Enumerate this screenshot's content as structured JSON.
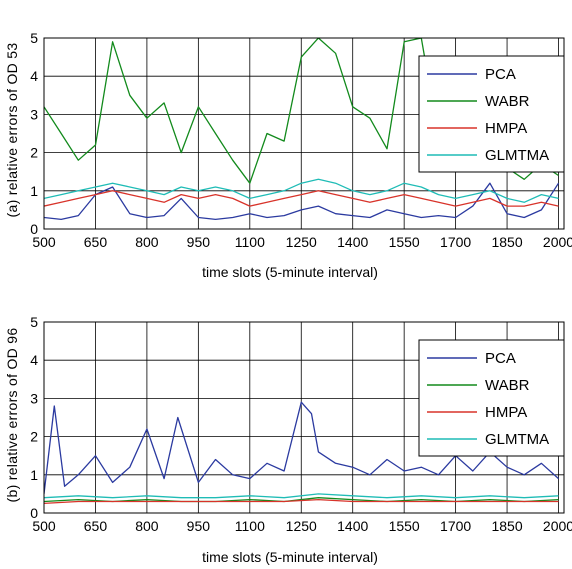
{
  "chart_data": [
    {
      "type": "line",
      "ylabel": "(a) relative errors of OD 53",
      "xlabel": "time slots (5-minute interval)",
      "xlim": [
        500,
        2016
      ],
      "ylim": [
        0,
        5
      ],
      "xticks": [
        "500",
        "650",
        "800",
        "950",
        "1100",
        "1250",
        "1400",
        "1550",
        "1700",
        "1850",
        "2000"
      ],
      "yticks": [
        "0",
        "1",
        "2",
        "3",
        "4",
        "5"
      ],
      "grid": true,
      "legend_position": "top-right",
      "series": [
        {
          "name": "PCA",
          "color": "#2b3aa0",
          "x": [
            500,
            550,
            600,
            650,
            700,
            750,
            800,
            850,
            900,
            950,
            1000,
            1050,
            1100,
            1150,
            1200,
            1250,
            1300,
            1350,
            1400,
            1450,
            1500,
            1550,
            1600,
            1650,
            1700,
            1750,
            1800,
            1850,
            1900,
            1950,
            2000
          ],
          "y": [
            0.3,
            0.25,
            0.35,
            0.9,
            1.1,
            0.4,
            0.3,
            0.35,
            0.8,
            0.3,
            0.25,
            0.3,
            0.4,
            0.3,
            0.35,
            0.5,
            0.6,
            0.4,
            0.35,
            0.3,
            0.5,
            0.4,
            0.3,
            0.35,
            0.3,
            0.6,
            1.2,
            0.4,
            0.3,
            0.5,
            1.2
          ]
        },
        {
          "name": "WABR",
          "color": "#128a1c",
          "x": [
            500,
            550,
            600,
            650,
            700,
            750,
            800,
            850,
            900,
            950,
            1000,
            1050,
            1100,
            1150,
            1200,
            1250,
            1300,
            1350,
            1400,
            1450,
            1500,
            1550,
            1600,
            1650,
            1700,
            1750,
            1800,
            1850,
            1900,
            1950,
            2000
          ],
          "y": [
            3.2,
            2.5,
            1.8,
            2.2,
            4.9,
            3.5,
            2.9,
            3.3,
            2.0,
            3.2,
            2.5,
            1.8,
            1.2,
            2.5,
            2.3,
            4.5,
            5.0,
            4.6,
            3.2,
            2.9,
            2.1,
            4.9,
            5.0,
            2.4,
            1.5,
            1.8,
            2.2,
            1.6,
            1.3,
            1.7,
            1.4
          ]
        },
        {
          "name": "HMPA",
          "color": "#d8332a",
          "x": [
            500,
            550,
            600,
            650,
            700,
            750,
            800,
            850,
            900,
            950,
            1000,
            1050,
            1100,
            1150,
            1200,
            1250,
            1300,
            1350,
            1400,
            1450,
            1500,
            1550,
            1600,
            1650,
            1700,
            1750,
            1800,
            1850,
            1900,
            1950,
            2000
          ],
          "y": [
            0.6,
            0.7,
            0.8,
            0.9,
            1.0,
            0.9,
            0.8,
            0.7,
            0.9,
            0.8,
            0.9,
            0.8,
            0.6,
            0.7,
            0.8,
            0.9,
            1.0,
            0.9,
            0.8,
            0.7,
            0.8,
            0.9,
            0.8,
            0.7,
            0.6,
            0.7,
            0.8,
            0.6,
            0.6,
            0.7,
            0.6
          ]
        },
        {
          "name": "GLMTMA",
          "color": "#1fbcb6",
          "x": [
            500,
            550,
            600,
            650,
            700,
            750,
            800,
            850,
            900,
            950,
            1000,
            1050,
            1100,
            1150,
            1200,
            1250,
            1300,
            1350,
            1400,
            1450,
            1500,
            1550,
            1600,
            1650,
            1700,
            1750,
            1800,
            1850,
            1900,
            1950,
            2000
          ],
          "y": [
            0.8,
            0.9,
            1.0,
            1.1,
            1.2,
            1.1,
            1.0,
            0.9,
            1.1,
            1.0,
            1.1,
            1.0,
            0.8,
            0.9,
            1.0,
            1.2,
            1.3,
            1.2,
            1.0,
            0.9,
            1.0,
            1.2,
            1.1,
            0.9,
            0.8,
            0.9,
            1.0,
            0.8,
            0.7,
            0.9,
            0.8
          ]
        }
      ]
    },
    {
      "type": "line",
      "ylabel": "(b) relative errors of OD 96",
      "xlabel": "time slots (5-minute interval)",
      "xlim": [
        500,
        2016
      ],
      "ylim": [
        0,
        5
      ],
      "xticks": [
        "500",
        "650",
        "800",
        "950",
        "1100",
        "1250",
        "1400",
        "1550",
        "1700",
        "1850",
        "2000"
      ],
      "yticks": [
        "0",
        "1",
        "2",
        "3",
        "4",
        "5"
      ],
      "grid": true,
      "legend_position": "top-right",
      "series": [
        {
          "name": "PCA",
          "color": "#2b3aa0",
          "x": [
            500,
            530,
            560,
            600,
            650,
            700,
            750,
            800,
            850,
            890,
            950,
            1000,
            1050,
            1100,
            1150,
            1200,
            1250,
            1280,
            1300,
            1350,
            1400,
            1450,
            1500,
            1550,
            1600,
            1650,
            1700,
            1750,
            1800,
            1850,
            1900,
            1950,
            2000
          ],
          "y": [
            0.5,
            2.8,
            0.7,
            1.0,
            1.5,
            0.8,
            1.2,
            2.2,
            0.9,
            2.5,
            0.8,
            1.4,
            1.0,
            0.9,
            1.3,
            1.1,
            2.9,
            2.6,
            1.6,
            1.3,
            1.2,
            1.0,
            1.4,
            1.1,
            1.2,
            1.0,
            1.5,
            1.1,
            1.6,
            1.2,
            1.0,
            1.3,
            0.9
          ]
        },
        {
          "name": "WABR",
          "color": "#128a1c",
          "x": [
            500,
            600,
            700,
            800,
            900,
            1000,
            1100,
            1200,
            1300,
            1400,
            1500,
            1600,
            1700,
            1800,
            1900,
            2000
          ],
          "y": [
            0.3,
            0.35,
            0.3,
            0.35,
            0.3,
            0.3,
            0.35,
            0.3,
            0.4,
            0.35,
            0.3,
            0.35,
            0.3,
            0.35,
            0.3,
            0.35
          ]
        },
        {
          "name": "HMPA",
          "color": "#d8332a",
          "x": [
            500,
            600,
            700,
            800,
            900,
            1000,
            1100,
            1200,
            1300,
            1400,
            1500,
            1600,
            1700,
            1800,
            1900,
            2000
          ],
          "y": [
            0.25,
            0.3,
            0.3,
            0.3,
            0.3,
            0.3,
            0.3,
            0.3,
            0.35,
            0.3,
            0.3,
            0.3,
            0.3,
            0.3,
            0.3,
            0.3
          ]
        },
        {
          "name": "GLMTMA",
          "color": "#1fbcb6",
          "x": [
            500,
            600,
            700,
            800,
            900,
            1000,
            1100,
            1200,
            1300,
            1400,
            1500,
            1600,
            1700,
            1800,
            1900,
            2000
          ],
          "y": [
            0.4,
            0.45,
            0.4,
            0.45,
            0.4,
            0.4,
            0.45,
            0.4,
            0.5,
            0.45,
            0.4,
            0.45,
            0.4,
            0.45,
            0.4,
            0.45
          ]
        }
      ]
    }
  ]
}
